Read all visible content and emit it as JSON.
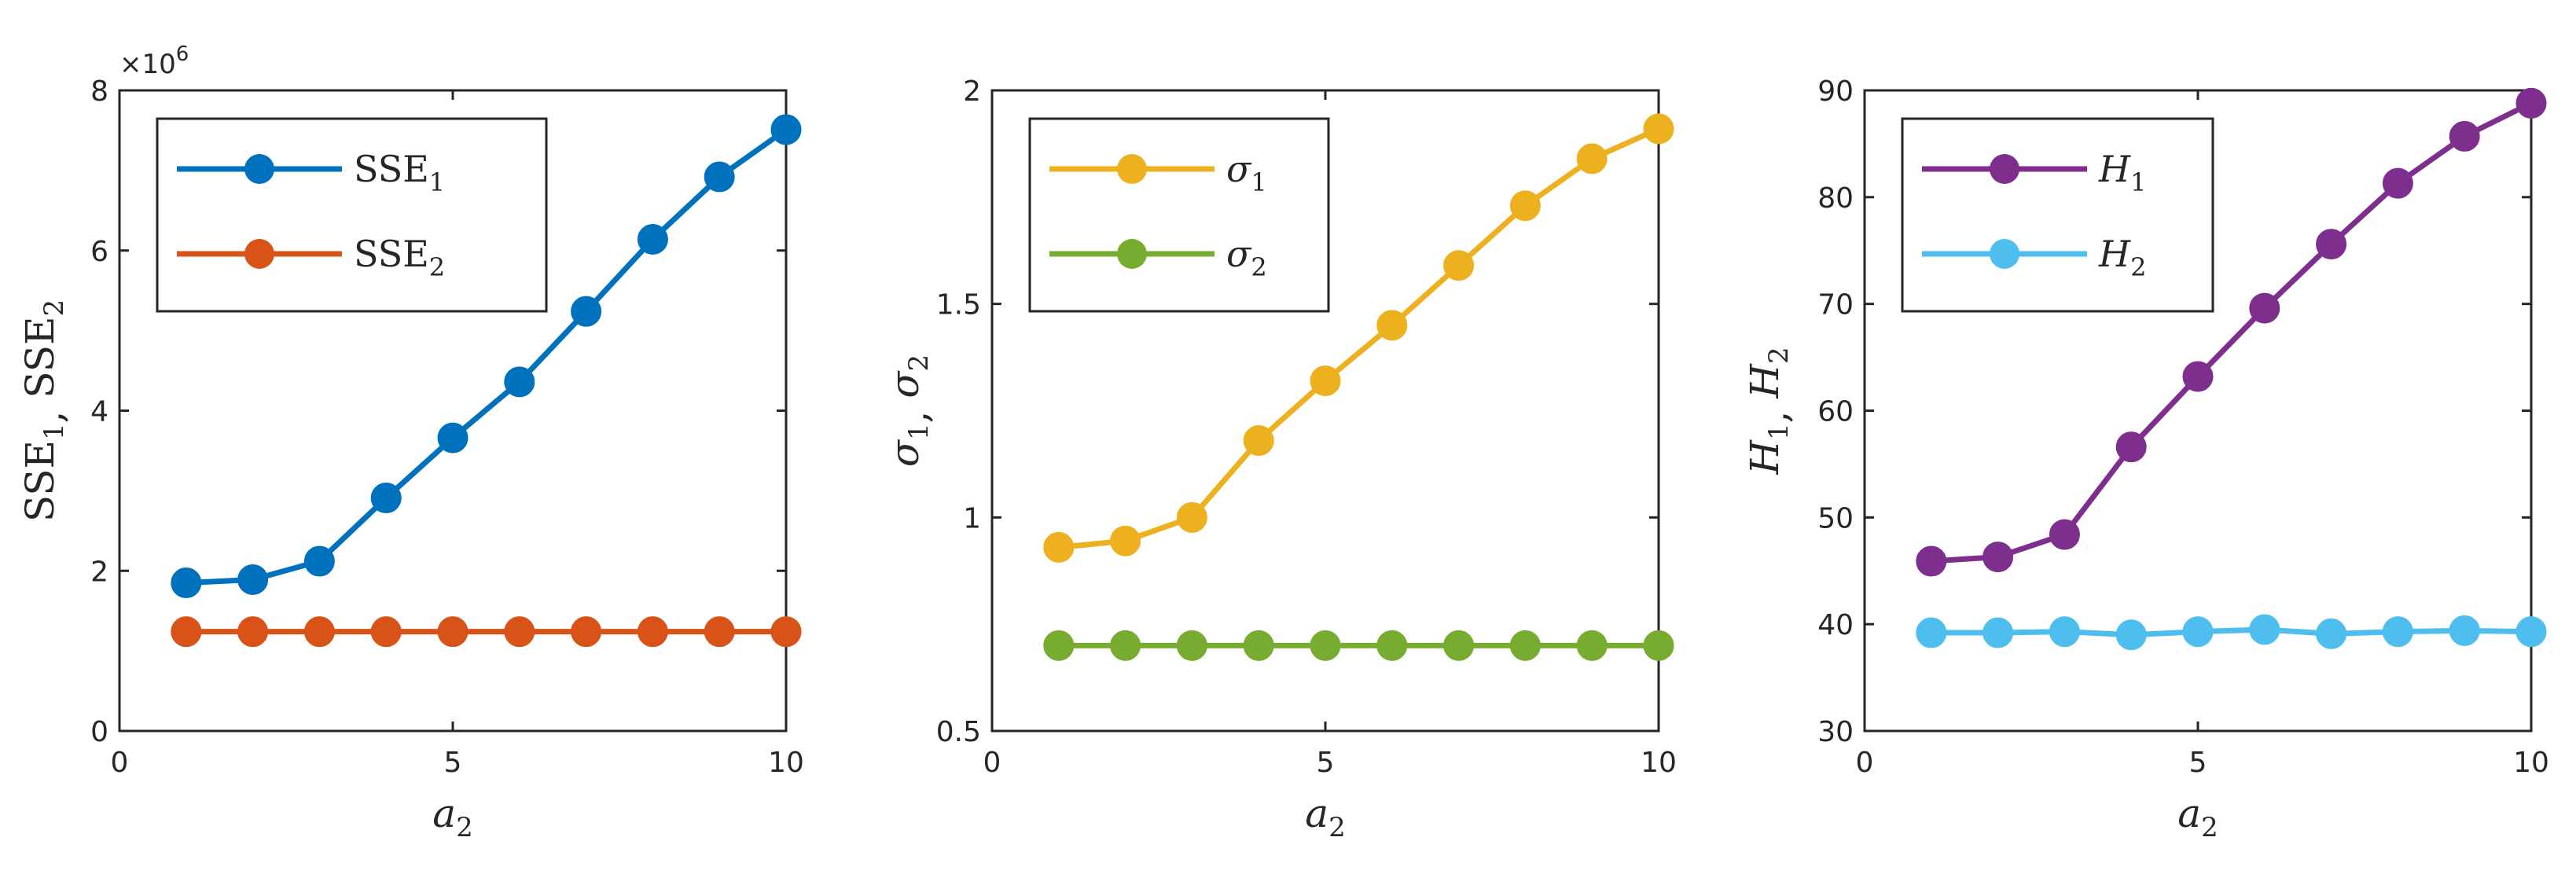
{
  "chart_data": [
    {
      "type": "line",
      "ylabel": "SSE1, SSE2",
      "ylabel_parts": [
        {
          "main": "SSE",
          "sub": "1",
          "italic": false
        },
        {
          "main": "SSE",
          "sub": "2",
          "italic": false
        }
      ],
      "xlabel": "a2",
      "xlabel_parts": {
        "main": "a",
        "sub": "2",
        "italic": true
      },
      "xlim": [
        0,
        10
      ],
      "ylim": [
        0,
        8
      ],
      "xticks": [
        0,
        5,
        10
      ],
      "yticks": [
        0,
        2,
        4,
        6,
        8
      ],
      "y_exponent_label": "×10",
      "y_exponent_power": "6",
      "legend_position": "top-left",
      "x": [
        1,
        2,
        3,
        4,
        5,
        6,
        7,
        8,
        9,
        10
      ],
      "series": [
        {
          "name": "SSE1",
          "name_main": "SSE",
          "name_sub": "1",
          "italic": false,
          "color": "#0072BD",
          "values": [
            1.85,
            1.89,
            2.12,
            2.91,
            3.66,
            4.36,
            5.24,
            6.14,
            6.92,
            7.51
          ]
        },
        {
          "name": "SSE2",
          "name_main": "SSE",
          "name_sub": "2",
          "italic": false,
          "color": "#D95319",
          "values": [
            1.24,
            1.24,
            1.24,
            1.24,
            1.24,
            1.24,
            1.24,
            1.24,
            1.24,
            1.24
          ]
        }
      ]
    },
    {
      "type": "line",
      "ylabel": "σ1, σ2",
      "ylabel_parts": [
        {
          "main": "σ",
          "sub": "1",
          "italic": true
        },
        {
          "main": "σ",
          "sub": "2",
          "italic": true
        }
      ],
      "xlabel": "a2",
      "xlabel_parts": {
        "main": "a",
        "sub": "2",
        "italic": true
      },
      "xlim": [
        0,
        10
      ],
      "ylim": [
        0.5,
        2
      ],
      "xticks": [
        0,
        5,
        10
      ],
      "yticks": [
        0.5,
        1,
        1.5,
        2
      ],
      "legend_position": "top-left",
      "x": [
        1,
        2,
        3,
        4,
        5,
        6,
        7,
        8,
        9,
        10
      ],
      "series": [
        {
          "name": "σ1",
          "name_main": "σ",
          "name_sub": "1",
          "italic": true,
          "color": "#EDB120",
          "values": [
            0.93,
            0.945,
            1.0,
            1.18,
            1.32,
            1.45,
            1.59,
            1.73,
            1.84,
            1.91
          ]
        },
        {
          "name": "σ2",
          "name_main": "σ",
          "name_sub": "2",
          "italic": true,
          "color": "#77AC30",
          "values": [
            0.7,
            0.7,
            0.7,
            0.7,
            0.7,
            0.7,
            0.7,
            0.7,
            0.7,
            0.7
          ]
        }
      ]
    },
    {
      "type": "line",
      "ylabel": "H1, H2",
      "ylabel_parts": [
        {
          "main": "H",
          "sub": "1",
          "italic": true
        },
        {
          "main": "H",
          "sub": "2",
          "italic": true
        }
      ],
      "xlabel": "a2",
      "xlabel_parts": {
        "main": "a",
        "sub": "2",
        "italic": true
      },
      "xlim": [
        0,
        10
      ],
      "ylim": [
        30,
        90
      ],
      "xticks": [
        0,
        5,
        10
      ],
      "yticks": [
        30,
        40,
        50,
        60,
        70,
        80,
        90
      ],
      "legend_position": "top-left",
      "x": [
        1,
        2,
        3,
        4,
        5,
        6,
        7,
        8,
        9,
        10
      ],
      "series": [
        {
          "name": "H1",
          "name_main": "H",
          "name_sub": "1",
          "italic": true,
          "color": "#7E2F8E",
          "values": [
            45.9,
            46.3,
            48.4,
            56.6,
            63.2,
            69.6,
            75.6,
            81.3,
            85.7,
            88.8
          ]
        },
        {
          "name": "H2",
          "name_main": "H",
          "name_sub": "2",
          "italic": true,
          "color": "#4DBEEE",
          "values": [
            39.2,
            39.2,
            39.3,
            39.0,
            39.3,
            39.5,
            39.1,
            39.3,
            39.4,
            39.3
          ]
        }
      ]
    }
  ]
}
